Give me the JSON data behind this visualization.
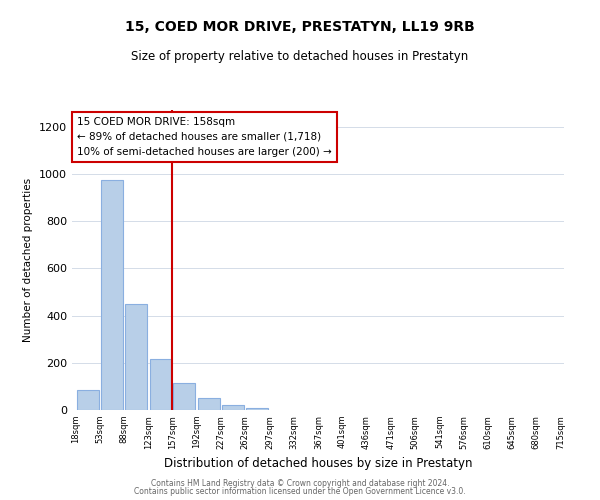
{
  "title": "15, COED MOR DRIVE, PRESTATYN, LL19 9RB",
  "subtitle": "Size of property relative to detached houses in Prestatyn",
  "xlabel": "Distribution of detached houses by size in Prestatyn",
  "ylabel": "Number of detached properties",
  "bar_edges": [
    18,
    53,
    88,
    123,
    157,
    192,
    227,
    262,
    297,
    332,
    367,
    401,
    436,
    471,
    506,
    541,
    576,
    610,
    645,
    680,
    715
  ],
  "bar_heights": [
    85,
    975,
    450,
    215,
    115,
    50,
    20,
    10,
    0,
    0,
    0,
    0,
    0,
    0,
    0,
    0,
    0,
    0,
    0,
    0
  ],
  "bar_color": "#b8cfe8",
  "vline_x": 157,
  "vline_color": "#cc0000",
  "annotation_line1": "15 COED MOR DRIVE: 158sqm",
  "annotation_line2": "← 89% of detached houses are smaller (1,718)",
  "annotation_line3": "10% of semi-detached houses are larger (200) →",
  "annotation_box_color": "#ffffff",
  "annotation_box_edge": "#cc0000",
  "ylim": [
    0,
    1270
  ],
  "yticks": [
    0,
    200,
    400,
    600,
    800,
    1000,
    1200
  ],
  "tick_labels": [
    "18sqm",
    "53sqm",
    "88sqm",
    "123sqm",
    "157sqm",
    "192sqm",
    "227sqm",
    "262sqm",
    "297sqm",
    "332sqm",
    "367sqm",
    "401sqm",
    "436sqm",
    "471sqm",
    "506sqm",
    "541sqm",
    "576sqm",
    "610sqm",
    "645sqm",
    "680sqm",
    "715sqm"
  ],
  "footer_line1": "Contains HM Land Registry data © Crown copyright and database right 2024.",
  "footer_line2": "Contains public sector information licensed under the Open Government Licence v3.0.",
  "bg_color": "#ffffff",
  "grid_color": "#d4dce8"
}
